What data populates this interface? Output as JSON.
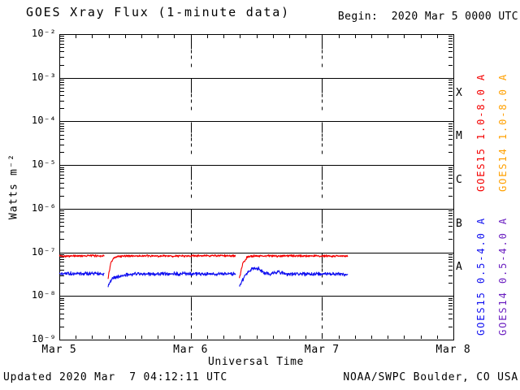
{
  "header": {
    "title": "GOES Xray Flux (1-minute data)",
    "begin_label": "Begin:  2020 Mar 5 0000 UTC"
  },
  "footer": {
    "updated": "Updated 2020 Mar  7 04:12:11 UTC",
    "source": "NOAA/SWPC Boulder, CO USA"
  },
  "chart_data": {
    "type": "line",
    "title": "GOES Xray Flux (1-minute data)",
    "xlabel": "Universal Time",
    "ylabel": "Watts m⁻²",
    "x_axis": {
      "start_hour": 0,
      "end_hour": 72,
      "tick_labels": [
        "Mar 5",
        "Mar 6",
        "Mar 7",
        "Mar 8"
      ],
      "day_span_hours": 24,
      "minor_tick_hours": 3,
      "gridline_hours": [
        24,
        48
      ]
    },
    "y_axis": {
      "scale": "log",
      "min_exp": -9,
      "max_exp": -2,
      "tick_labels": [
        "10⁻²",
        "10⁻³",
        "10⁻⁴",
        "10⁻⁵",
        "10⁻⁶",
        "10⁻⁷",
        "10⁻⁸",
        "10⁻⁹"
      ]
    },
    "flare_classes": [
      {
        "label": "X",
        "upper_exp": -3
      },
      {
        "label": "M",
        "upper_exp": -4
      },
      {
        "label": "C",
        "upper_exp": -5
      },
      {
        "label": "B",
        "upper_exp": -6
      },
      {
        "label": "A",
        "upper_exp": -7
      }
    ],
    "legend": [
      {
        "label": "GOES15 1.0-8.0 A",
        "color": "#f40000"
      },
      {
        "label": "GOES14 1.0-8.0 A",
        "color": "#ffa000"
      },
      {
        "label": "GOES15 0.5-4.0 A",
        "color": "#1010f0"
      },
      {
        "label": "GOES14 0.5-4.0 A",
        "color": "#6a1ec0"
      }
    ],
    "series": [
      {
        "name": "GOES15 1.0-8.0 A",
        "color": "#f40000",
        "segments": [
          [
            [
              0.0,
              8.3e-08
            ],
            [
              2.0,
              8.2e-08
            ],
            [
              5.0,
              8.4e-08
            ],
            [
              8.2,
              8.3e-08
            ]
          ],
          [
            [
              8.9,
              2.6e-08
            ],
            [
              9.4,
              5.6e-08
            ],
            [
              10.0,
              7.4e-08
            ],
            [
              10.8,
              8.1e-08
            ],
            [
              12.0,
              8.3e-08
            ],
            [
              20.0,
              8.2e-08
            ],
            [
              28.0,
              8.4e-08
            ],
            [
              32.2,
              8.3e-08
            ]
          ],
          [
            [
              32.9,
              2.5e-08
            ],
            [
              33.5,
              5.4e-08
            ],
            [
              34.3,
              7.7e-08
            ],
            [
              35.3,
              8.3e-08
            ],
            [
              44.0,
              8.3e-08
            ],
            [
              52.7,
              8.2e-08
            ]
          ]
        ]
      },
      {
        "name": "GOES15 0.5-4.0 A",
        "color": "#1010f0",
        "segments": [
          [
            [
              0.0,
              3.2e-08
            ],
            [
              4.0,
              3.3e-08
            ],
            [
              8.2,
              3.2e-08
            ]
          ],
          [
            [
              8.9,
              1.7e-08
            ],
            [
              9.6,
              2.5e-08
            ],
            [
              10.6,
              2.8e-08
            ],
            [
              12.0,
              3e-08
            ],
            [
              13.5,
              3.2e-08
            ],
            [
              24.0,
              3.2e-08
            ],
            [
              32.2,
              3.2e-08
            ]
          ],
          [
            [
              32.9,
              1.65e-08
            ],
            [
              33.9,
              2.9e-08
            ],
            [
              35.3,
              4.2e-08
            ],
            [
              36.4,
              4.2e-08
            ],
            [
              37.5,
              3.4e-08
            ],
            [
              38.6,
              3.2e-08
            ],
            [
              40.0,
              3.5e-08
            ],
            [
              41.5,
              3.2e-08
            ],
            [
              47.0,
              3.2e-08
            ],
            [
              52.7,
              3.1e-08
            ]
          ]
        ]
      }
    ]
  }
}
